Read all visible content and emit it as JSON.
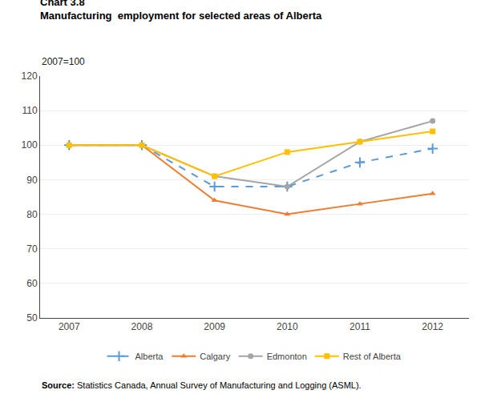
{
  "chart_data": {
    "type": "line",
    "title": [
      "Chart 3.8",
      "Manufacturing  employment for selected areas of Alberta"
    ],
    "subtitle": "2007=100",
    "annotations": [
      "Source: Statistics Canada, Annual Survey of Manufacturing and Logging (ASML)."
    ],
    "x": [
      2007,
      2008,
      2009,
      2010,
      2011,
      2012
    ],
    "series": [
      {
        "name": "Alberta",
        "color": "#5B9BD5",
        "line_style": "dashed",
        "marker": "plus",
        "values": [
          100,
          100,
          88,
          88,
          95,
          99
        ]
      },
      {
        "name": "Calgary",
        "color": "#ED7D31",
        "line_style": "solid",
        "marker": "triangle-up",
        "values": [
          100,
          100,
          84,
          80,
          83,
          86
        ]
      },
      {
        "name": "Edmonton",
        "color": "#A5A5A5",
        "line_style": "solid",
        "marker": "circle",
        "values": [
          100,
          100,
          91,
          88,
          101,
          107
        ]
      },
      {
        "name": "Rest of Alberta",
        "color": "#FFC000",
        "line_style": "solid",
        "marker": "square",
        "values": [
          100,
          100,
          91,
          98,
          101,
          104
        ]
      }
    ],
    "xlim": [
      2006.6,
      2012.5
    ],
    "xticks": [
      2007,
      2008,
      2009,
      2010,
      2011,
      2012
    ],
    "ylim": [
      50,
      120
    ],
    "yticks": [
      50,
      60,
      70,
      80,
      90,
      100,
      110,
      120
    ],
    "grid": true,
    "legend": "bottom"
  }
}
